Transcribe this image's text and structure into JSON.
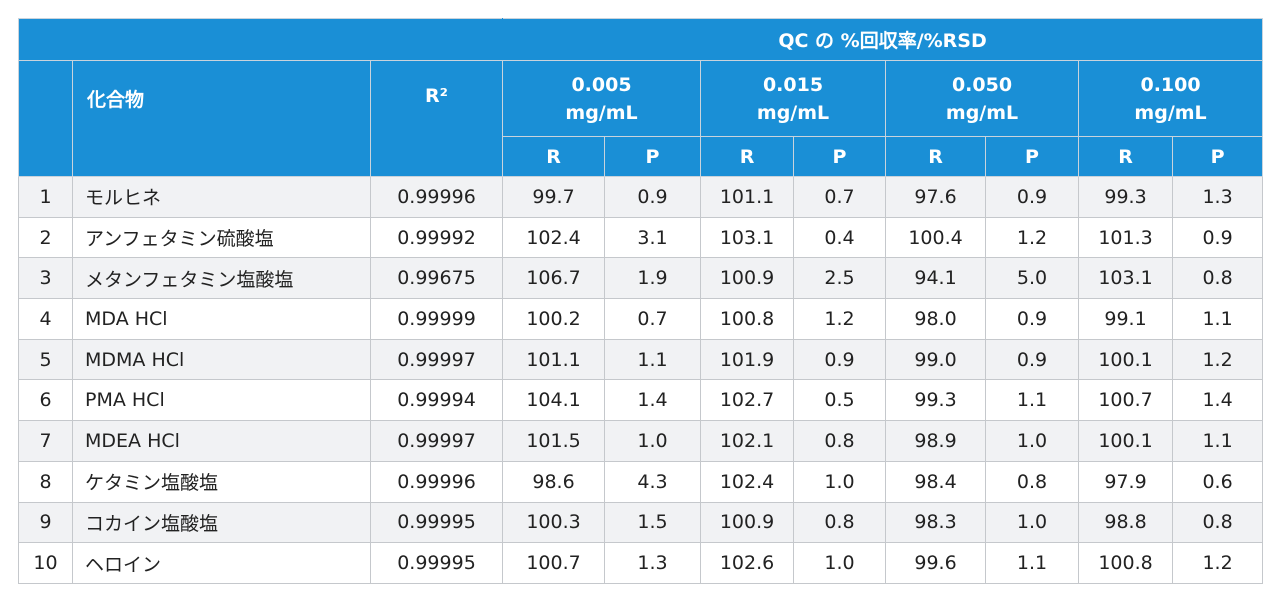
{
  "table": {
    "group_header": "QC の %回収率/%RSD",
    "col_compound": "化合物",
    "col_r2": "R²",
    "concentrations": [
      {
        "value": "0.005",
        "unit": "mg/mL"
      },
      {
        "value": "0.015",
        "unit": "mg/mL"
      },
      {
        "value": "0.050",
        "unit": "mg/mL"
      },
      {
        "value": "0.100",
        "unit": "mg/mL"
      }
    ],
    "sub_headers": [
      "R",
      "P"
    ],
    "rows": [
      [
        "1",
        "モルヒネ",
        "0.99996",
        "99.7",
        "0.9",
        "101.1",
        "0.7",
        "97.6",
        "0.9",
        "99.3",
        "1.3"
      ],
      [
        "2",
        "アンフェタミン硫酸塩",
        "0.99992",
        "102.4",
        "3.1",
        "103.1",
        "0.4",
        "100.4",
        "1.2",
        "101.3",
        "0.9"
      ],
      [
        "3",
        "メタンフェタミン塩酸塩",
        "0.99675",
        "106.7",
        "1.9",
        "100.9",
        "2.5",
        "94.1",
        "5.0",
        "103.1",
        "0.8"
      ],
      [
        "4",
        "MDA HCl",
        "0.99999",
        "100.2",
        "0.7",
        "100.8",
        "1.2",
        "98.0",
        "0.9",
        "99.1",
        "1.1"
      ],
      [
        "5",
        "MDMA HCl",
        "0.99997",
        "101.1",
        "1.1",
        "101.9",
        "0.9",
        "99.0",
        "0.9",
        "100.1",
        "1.2"
      ],
      [
        "6",
        "PMA HCl",
        "0.99994",
        "104.1",
        "1.4",
        "102.7",
        "0.5",
        "99.3",
        "1.1",
        "100.7",
        "1.4"
      ],
      [
        "7",
        "MDEA HCl",
        "0.99997",
        "101.5",
        "1.0",
        "102.1",
        "0.8",
        "98.9",
        "1.0",
        "100.1",
        "1.1"
      ],
      [
        "8",
        "ケタミン塩酸塩",
        "0.99996",
        "98.6",
        "4.3",
        "102.4",
        "1.0",
        "98.4",
        "0.8",
        "97.9",
        "0.6"
      ],
      [
        "9",
        "コカイン塩酸塩",
        "0.99995",
        "100.3",
        "1.5",
        "100.9",
        "0.8",
        "98.3",
        "1.0",
        "98.8",
        "0.8"
      ],
      [
        "10",
        "ヘロイン",
        "0.99995",
        "100.7",
        "1.3",
        "102.6",
        "1.0",
        "99.6",
        "1.1",
        "100.8",
        "1.2"
      ]
    ]
  }
}
